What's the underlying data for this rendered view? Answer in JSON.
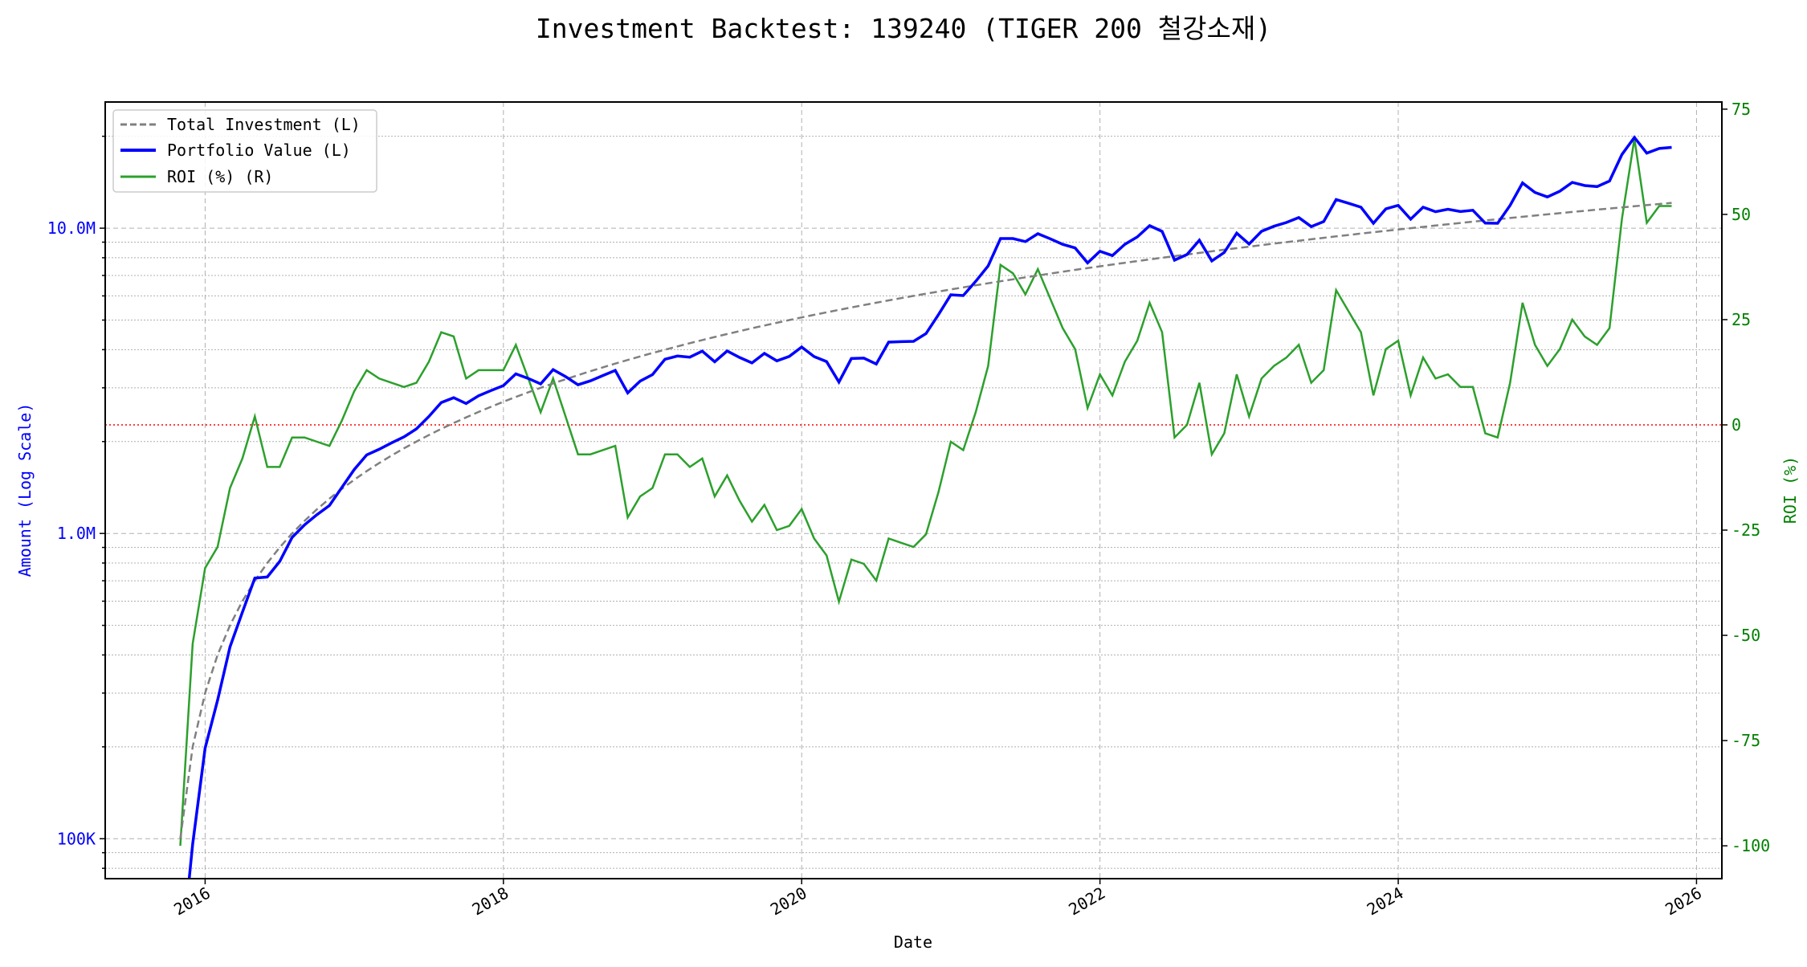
{
  "chart_data": {
    "type": "line",
    "title": "Investment Backtest: 139240 (TIGER 200 철강소재)",
    "xlabel": "Date",
    "ylabel_left": "Amount (Log Scale)",
    "ylabel_right": "ROI (%)",
    "x_start": "2015-11",
    "x_frequency": "monthly",
    "xlim": [
      2015.33,
      2026.17
    ],
    "ylim_left": [
      74000,
      25900000
    ],
    "ylim_right": [
      -107.8,
      76.7
    ],
    "x_ticks": [
      "2016",
      "2018",
      "2020",
      "2022",
      "2024",
      "2026"
    ],
    "y_ticks_left": [
      {
        "value": 100000,
        "label": "100K"
      },
      {
        "value": 1000000,
        "label": "1.0M"
      },
      {
        "value": 10000000,
        "label": "10.0M"
      }
    ],
    "y_ticks_right": [
      "75",
      "50",
      "25",
      "0",
      "-25",
      "-50",
      "-75",
      "-100"
    ],
    "legend": {
      "placement": "top-left",
      "entries": [
        "Total Investment (L)",
        "Portfolio Value (L)",
        "ROI (%) (R)"
      ]
    },
    "monthly_contribution": 100000,
    "series": [
      {
        "name": "Total Investment (L)",
        "color": "#808080",
        "style": "dashed",
        "rule": "cumulative monthly contribution"
      },
      {
        "name": "Portfolio Value (L)",
        "color": "#0000ff",
        "style": "solid",
        "rule": "total investment x (1 + ROI/100)"
      },
      {
        "name": "ROI (%) (R)",
        "color": "#2ca02c",
        "style": "solid",
        "values": [
          -100,
          -52,
          -34,
          -29,
          -15,
          -8,
          2,
          -10,
          -10,
          -3,
          -3,
          -4,
          -5,
          1,
          8,
          13,
          11,
          10,
          9,
          10,
          15,
          22,
          21,
          11,
          13,
          13,
          13,
          19,
          11,
          3,
          11,
          2,
          -7,
          -7,
          -6,
          -5,
          -22,
          -17,
          -15,
          -7,
          -7,
          -10,
          -8,
          -17,
          -12,
          -18,
          -23,
          -19,
          -25,
          -24,
          -20,
          -27,
          -31,
          -42,
          -32,
          -33,
          -37,
          -27,
          -28,
          -29,
          -26,
          -16,
          -4,
          -6,
          3,
          14,
          38,
          36,
          31,
          37,
          30,
          23,
          18,
          4,
          12,
          7,
          15,
          20,
          29,
          22,
          -3,
          0,
          10,
          -7,
          -2,
          12,
          2,
          11,
          14,
          16,
          19,
          10,
          13,
          32,
          27,
          22,
          7,
          18,
          20,
          7,
          16,
          11,
          12,
          9,
          9,
          -2,
          -3,
          10,
          29,
          19,
          14,
          18,
          25,
          21,
          19,
          23,
          49,
          68,
          48,
          52,
          52
        ]
      }
    ],
    "reference_line": {
      "roi": 0,
      "color": "#ff0000",
      "style": "dotted"
    },
    "grid": true
  }
}
